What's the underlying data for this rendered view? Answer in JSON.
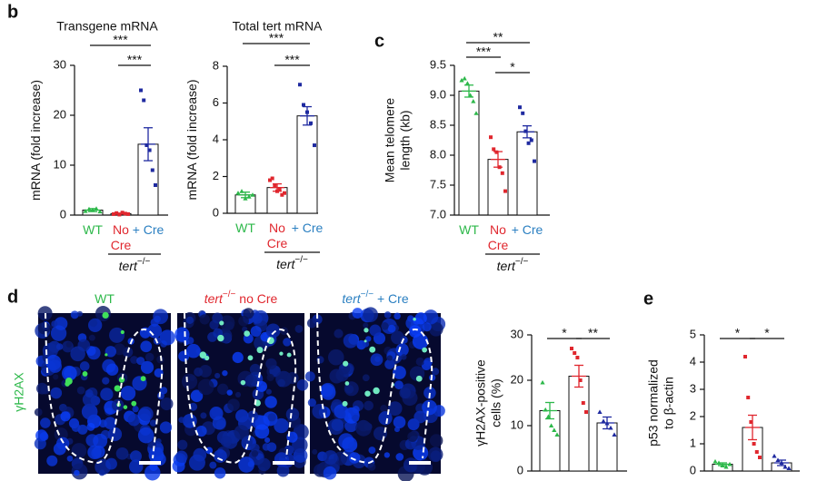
{
  "panels": [
    "b",
    "c",
    "d",
    "e"
  ],
  "images": [
    {
      "label": "WT",
      "color": "#2db84a"
    },
    {
      "italic": "tert",
      "sup": "−/−",
      "label": " no Cre",
      "color": "#e0272e"
    },
    {
      "italic": "tert",
      "sup": "−/−",
      "label": " + Cre",
      "color": "#2a7fc1"
    }
  ],
  "stain": "γH2AX",
  "chart_data": [
    {
      "type": "bar",
      "title": "Transgene mRNA",
      "ylabel": "mRNA (fold increase)",
      "categories": [
        "WT",
        "No\nCre",
        "+ Cre"
      ],
      "label_colors": [
        "#2db84a",
        "#e0272e",
        "#2a7fc1"
      ],
      "point_colors": [
        "#2db84a",
        "#e0272e",
        "#1f2aa0"
      ],
      "values": [
        1.0,
        0.3,
        14.2
      ],
      "errors": [
        0.3,
        0.1,
        3.3
      ],
      "points": [
        [
          0.8,
          1.2,
          1.0,
          1.3,
          0.7
        ],
        [
          0.2,
          0.4,
          0.1,
          0.5,
          0.3,
          0.2
        ],
        [
          25,
          23,
          14,
          13,
          9,
          6
        ]
      ],
      "ylim": [
        0,
        30
      ],
      "yticks": [
        0,
        10,
        20,
        30
      ],
      "brackets": [
        {
          "label": "***",
          "pair": [
            0,
            2
          ]
        },
        {
          "label": "***",
          "pair": [
            1,
            2
          ]
        }
      ],
      "group": {
        "italic": "tert",
        "sup": "−/−",
        "pair": [
          1,
          2
        ]
      }
    },
    {
      "type": "bar",
      "title": "Total tert mRNA",
      "ylabel": "mRNA (fold increase)",
      "categories": [
        "WT",
        "No\nCre",
        "+ Cre"
      ],
      "label_colors": [
        "#2db84a",
        "#e0272e",
        "#2a7fc1"
      ],
      "point_colors": [
        "#2db84a",
        "#e0272e",
        "#1f2aa0"
      ],
      "values": [
        1.0,
        1.4,
        5.3
      ],
      "errors": [
        0.15,
        0.2,
        0.5
      ],
      "points": [
        [
          1.1,
          1.2,
          0.8,
          0.9,
          1.0
        ],
        [
          1.8,
          1.9,
          1.5,
          1.2,
          1.3,
          1.0,
          1.1
        ],
        [
          7.0,
          5.9,
          5.5,
          4.9,
          3.7
        ]
      ],
      "ylim": [
        0,
        8
      ],
      "yticks": [
        0,
        2,
        4,
        6,
        8
      ],
      "brackets": [
        {
          "label": "***",
          "pair": [
            0,
            2
          ]
        },
        {
          "label": "***",
          "pair": [
            1,
            2
          ]
        }
      ],
      "group": {
        "italic": "tert",
        "sup": "−/−",
        "pair": [
          1,
          2
        ]
      }
    },
    {
      "type": "bar",
      "ylabel": "Mean telomere\nlength (kb)",
      "categories": [
        "WT",
        "No\nCre",
        "+ Cre"
      ],
      "label_colors": [
        "#2db84a",
        "#e0272e",
        "#2a7fc1"
      ],
      "point_colors": [
        "#2db84a",
        "#e0272e",
        "#1f2aa0"
      ],
      "values": [
        9.07,
        7.93,
        8.39
      ],
      "errors": [
        0.1,
        0.13,
        0.1
      ],
      "points": [
        [
          9.25,
          9.28,
          9.2,
          9.0,
          8.9,
          8.7
        ],
        [
          8.3,
          8.1,
          8.05,
          7.8,
          7.7,
          7.4
        ],
        [
          8.8,
          8.7,
          8.4,
          8.2,
          8.25,
          7.9
        ]
      ],
      "ylim": [
        7,
        9.5
      ],
      "yticks": [
        {
          "value": 7,
          "label": "7.0"
        },
        7.5,
        {
          "value": 8,
          "label": "8.0"
        },
        8.5,
        {
          "value": 9,
          "label": "9.0"
        },
        9.5
      ],
      "brackets": [
        {
          "label": "**",
          "pair": [
            0,
            2
          ]
        },
        {
          "label": "***",
          "pair": [
            0,
            1
          ]
        },
        {
          "label": "*",
          "pair": [
            1,
            2
          ]
        }
      ],
      "group": {
        "italic": "tert",
        "sup": "−/−",
        "pair": [
          1,
          2
        ]
      }
    },
    {
      "type": "bar",
      "ylabel": "γH2AX-positive\ncells (%)",
      "categories": [
        null,
        null,
        null
      ],
      "point_colors": [
        "#2db84a",
        "#e0272e",
        "#1f2aa0"
      ],
      "values": [
        13.3,
        20.9,
        10.6
      ],
      "errors": [
        1.8,
        2.4,
        1.3
      ],
      "points": [
        [
          19.5,
          13.5,
          12,
          10,
          9,
          8
        ],
        [
          27,
          26,
          25,
          20,
          15,
          13
        ],
        [
          13,
          11,
          10.5,
          9.5,
          8
        ]
      ],
      "ylim": [
        0,
        30
      ],
      "yticks": [
        0,
        10,
        20,
        30
      ],
      "brackets": [
        {
          "label": "*",
          "pair": [
            0,
            1
          ]
        },
        {
          "label": "**",
          "pair": [
            1,
            2
          ]
        }
      ]
    },
    {
      "type": "bar",
      "ylabel": "p53 normalized\nto β-actin",
      "categories": [
        null,
        null,
        null
      ],
      "point_colors": [
        "#2db84a",
        "#e0272e",
        "#1f2aa0"
      ],
      "values": [
        0.25,
        1.6,
        0.3
      ],
      "errors": [
        0.05,
        0.45,
        0.1
      ],
      "points": [
        [
          0.35,
          0.3,
          0.2,
          0.15,
          0.25
        ],
        [
          4.2,
          2.7,
          1.8,
          1.0,
          0.7,
          0.5
        ],
        [
          0.55,
          0.4,
          0.3,
          0.15,
          0.1
        ]
      ],
      "ylim": [
        0,
        5
      ],
      "yticks": [
        0,
        1,
        2,
        3,
        4,
        5
      ],
      "brackets": [
        {
          "label": "*",
          "pair": [
            0,
            1
          ]
        },
        {
          "label": "*",
          "pair": [
            1,
            2
          ]
        }
      ]
    }
  ]
}
